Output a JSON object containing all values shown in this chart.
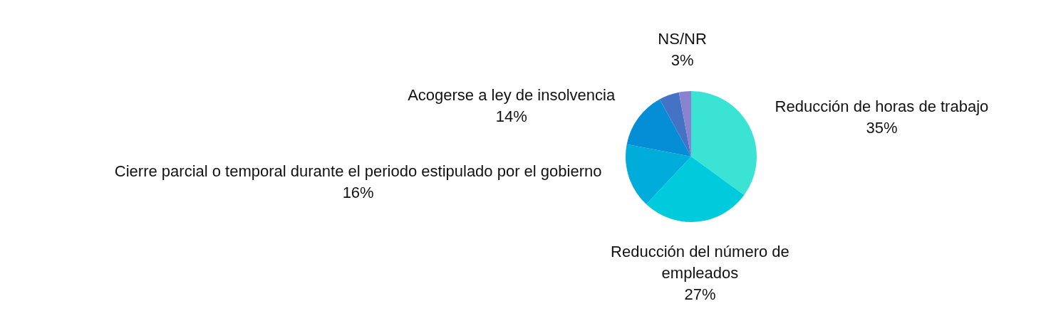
{
  "chart_data": {
    "type": "pie",
    "categories": [
      "Reducción de horas de trabajo",
      "Reducción del número de empleados",
      "Cierre parcial o temporal durante el periodo estipulado por el gobierno",
      "Acogerse a ley de insolvencia",
      null,
      "NS/NR"
    ],
    "values": [
      35,
      27,
      16,
      14,
      5,
      3
    ],
    "value_labels": [
      "35%",
      "27%",
      "16%",
      "14%",
      null,
      "3%"
    ],
    "colors": [
      "#3be3d4",
      "#00cbdc",
      "#00acd9",
      "#058dd5",
      "#4472c4",
      "#8783cf"
    ],
    "legend": false
  }
}
